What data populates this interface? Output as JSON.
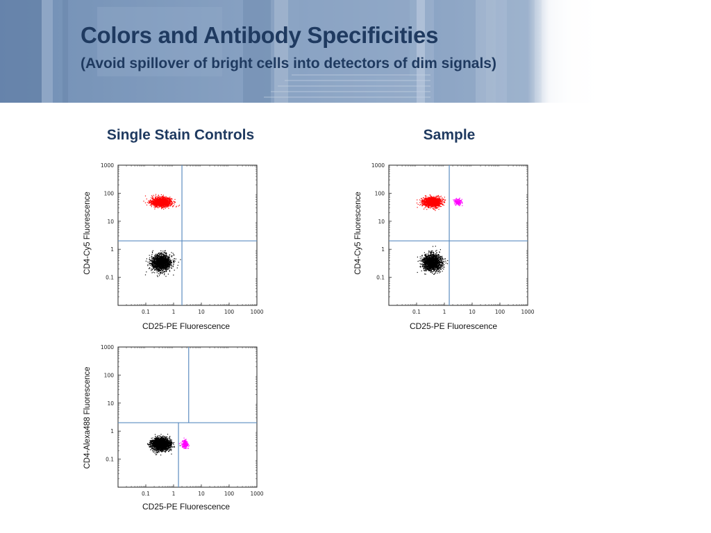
{
  "header": {
    "title": "Colors and Antibody Specificities",
    "subtitle": "(Avoid spillover of bright cells into detectors of dim signals)"
  },
  "sections": {
    "left": "Single Stain Controls",
    "right": "Sample"
  },
  "colors": {
    "title": "#1f3a60",
    "gate_line": "#5b8cc0",
    "cd4_positive": "#ff0000",
    "cd4_negative": "#000000",
    "cd25_positive": "#ff00ff"
  },
  "chart_data": [
    {
      "id": "single-stain-cy5",
      "type": "scatter",
      "title": "",
      "xlabel": "CD25-PE Fluorescence",
      "ylabel": "CD4-Cy5 Fluorescence",
      "x_scale": "log",
      "y_scale": "log",
      "xlim": [
        0.01,
        1000
      ],
      "ylim": [
        0.01,
        1000
      ],
      "x_ticks": [
        "0.1",
        "1",
        "10",
        "100",
        "1000"
      ],
      "y_ticks": [
        "0.1",
        "1",
        "10",
        "100",
        "1000"
      ],
      "gates": {
        "x": 2,
        "y": 2
      },
      "gate_extent": "full",
      "populations": [
        {
          "color": "#ff0000",
          "center": [
            0.35,
            50
          ],
          "spread": [
            0.33,
            0.15
          ],
          "count": 1400
        },
        {
          "color": "#000000",
          "center": [
            0.35,
            0.35
          ],
          "spread": [
            0.33,
            0.26
          ],
          "count": 1600
        }
      ]
    },
    {
      "id": "sample",
      "type": "scatter",
      "title": "",
      "xlabel": "CD25-PE Fluorescence",
      "ylabel": "CD4-Cy5 Fluorescence",
      "x_scale": "log",
      "y_scale": "log",
      "xlim": [
        0.01,
        1000
      ],
      "ylim": [
        0.01,
        1000
      ],
      "x_ticks": [
        "0.1",
        "1",
        "10",
        "100",
        "1000"
      ],
      "y_ticks": [
        "0.1",
        "1",
        "10",
        "100",
        "1000"
      ],
      "gates": {
        "x": 1.5,
        "y": 2
      },
      "gate_extent": "full",
      "populations": [
        {
          "color": "#ff0000",
          "center": [
            0.35,
            50
          ],
          "spread": [
            0.3,
            0.15
          ],
          "count": 1400
        },
        {
          "color": "#ff00ff",
          "center": [
            3,
            50
          ],
          "spread": [
            0.12,
            0.1
          ],
          "count": 150
        },
        {
          "color": "#000000",
          "center": [
            0.35,
            0.35
          ],
          "spread": [
            0.3,
            0.26
          ],
          "count": 1600
        }
      ]
    },
    {
      "id": "single-stain-alexa488",
      "type": "scatter",
      "title": "",
      "xlabel": "CD25-PE Fluorescence",
      "ylabel": "CD4-Alexa488 Fluorescence",
      "x_scale": "log",
      "y_scale": "log",
      "xlim": [
        0.01,
        1000
      ],
      "ylim": [
        0.01,
        1000
      ],
      "x_ticks": [
        "0.1",
        "1",
        "10",
        "100",
        "1000"
      ],
      "y_ticks": [
        "0.1",
        "1",
        "10",
        "100",
        "1000"
      ],
      "gates": {
        "x": 3.5,
        "y": 2,
        "x_low": 1.5
      },
      "gate_extent": "split",
      "populations": [
        {
          "color": "#000000",
          "center": [
            0.35,
            0.35
          ],
          "spread": [
            0.3,
            0.2
          ],
          "count": 2200
        },
        {
          "color": "#ff00ff",
          "center": [
            2.5,
            0.35
          ],
          "spread": [
            0.1,
            0.12
          ],
          "count": 200
        }
      ]
    }
  ]
}
